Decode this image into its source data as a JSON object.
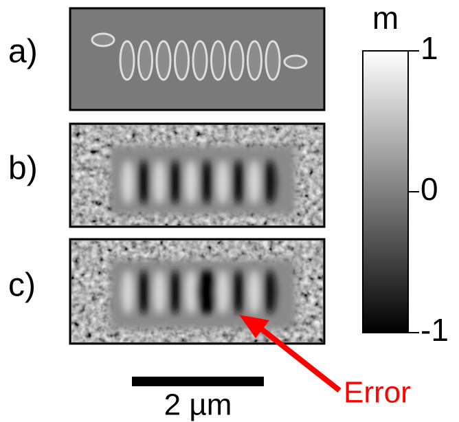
{
  "panels": [
    {
      "label": "a)"
    },
    {
      "label": "b)"
    },
    {
      "label": "c)"
    }
  ],
  "colorbar": {
    "label": "m",
    "range": [
      -1,
      1
    ],
    "ticks": [
      1,
      0,
      -1
    ]
  },
  "scale_bar": {
    "label": "2 µm"
  },
  "annotation": {
    "text": "Error"
  }
}
